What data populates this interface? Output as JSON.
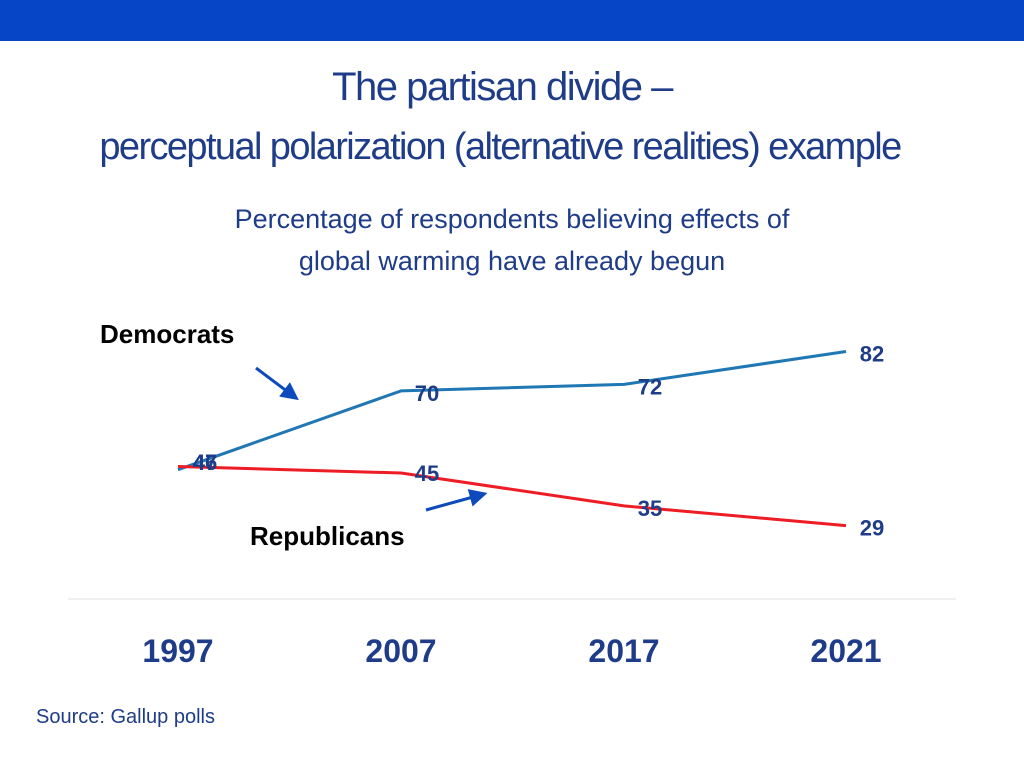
{
  "slide": {
    "title_line1": "The partisan divide –",
    "title_line2": "perceptual polarization (alternative realities) example",
    "source": "Source: Gallup polls"
  },
  "colors": {
    "banner": "#0645c6",
    "title_text": "#1f3c88",
    "democrats_line": "#1f77b4",
    "republicans_line": "#ee1c24",
    "arrow": "#0d4bbd"
  },
  "chart_data": {
    "type": "line",
    "title": "Percentage of respondents believing effects of global warming have already begun",
    "title_lines": [
      "Percentage of respondents believing effects of",
      "global warming have already begun"
    ],
    "categories": [
      "1997",
      "2007",
      "2017",
      "2021"
    ],
    "series": [
      {
        "name": "Democrats",
        "values": [
          46,
          70,
          72,
          82
        ],
        "value_labels": [
          "46",
          "70",
          "72",
          "82"
        ],
        "color": "#1f77b4"
      },
      {
        "name": "Republicans",
        "values": [
          47,
          45,
          35,
          29
        ],
        "value_labels": [
          "47",
          "45",
          "35",
          "29"
        ],
        "color": "#ee1c24"
      }
    ],
    "xlabel": "",
    "ylabel": "",
    "ylim": [
      0,
      100
    ],
    "grid": false,
    "legend": "inline annotations with arrows"
  }
}
